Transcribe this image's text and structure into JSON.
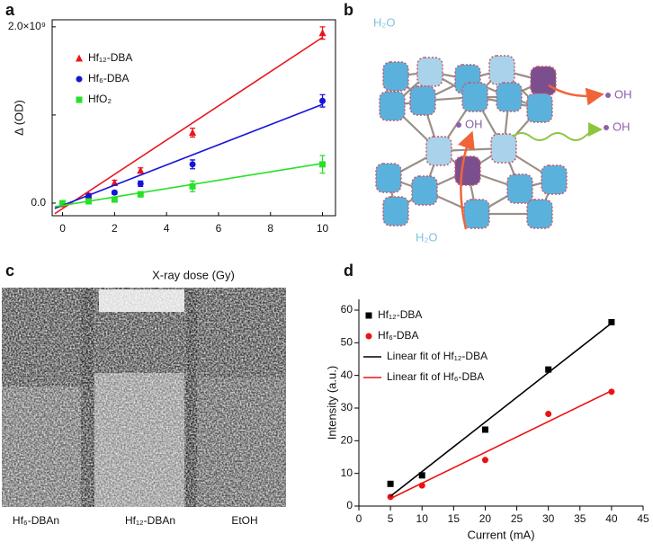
{
  "panel_labels": [
    "a",
    "b",
    "c",
    "d"
  ],
  "chart_data": [
    {
      "type": "scatter",
      "xlabel": "X-ray dose (Gy)",
      "ylabel": "Δ (OD)",
      "xlim": [
        -0.4,
        10.5
      ],
      "xticks": [
        0,
        2,
        4,
        6,
        8,
        10
      ],
      "ylim": [
        -143000000,
        2080000000
      ],
      "yticks": [
        {
          "value": 0,
          "label": "0.0"
        },
        {
          "value": 2000000000,
          "label": "2.0×10⁹"
        }
      ],
      "minor_yticks": [
        1000000000
      ],
      "frame": "box",
      "series": [
        {
          "name": "Hf₁₂-DBA",
          "color": "#e8161e",
          "marker": "triangle",
          "x": [
            0,
            1,
            2,
            3,
            5,
            10
          ],
          "values": [
            -10000000,
            90000000,
            230000000,
            370000000,
            800000000,
            1930000000
          ],
          "errors": [
            20000000,
            20000000,
            30000000,
            30000000,
            50000000,
            70000000
          ]
        },
        {
          "name": "Hf₆-DBA",
          "color": "#1515d8",
          "marker": "circle",
          "x": [
            0,
            1,
            2,
            3,
            5,
            10
          ],
          "values": [
            0,
            80000000,
            120000000,
            220000000,
            440000000,
            1160000000
          ],
          "errors": [
            20000000,
            20000000,
            20000000,
            30000000,
            50000000,
            70000000
          ]
        },
        {
          "name": "HfO₂",
          "color": "#27e127",
          "marker": "square",
          "x": [
            0,
            1,
            2,
            3,
            5,
            10
          ],
          "values": [
            0,
            20000000,
            40000000,
            100000000,
            190000000,
            440000000
          ],
          "errors": [
            20000000,
            20000000,
            20000000,
            30000000,
            60000000,
            100000000
          ]
        },
        {
          "color": "#e8161e",
          "line": true,
          "x": [
            -0.3,
            10
          ],
          "values": [
            -120000000,
            1880000000
          ]
        },
        {
          "color": "#1515d8",
          "line": true,
          "x": [
            -0.3,
            10
          ],
          "values": [
            -60000000,
            1120000000
          ]
        },
        {
          "color": "#27e127",
          "line": true,
          "x": [
            -0.3,
            10
          ],
          "values": [
            -40000000,
            450000000
          ]
        }
      ]
    },
    {
      "type": "scatter",
      "xlabel": "Current (mA)",
      "ylabel": "Intensity (a.u.)",
      "xlim": [
        0,
        45
      ],
      "xticks": [
        0,
        5,
        10,
        15,
        20,
        25,
        30,
        35,
        40,
        45
      ],
      "ylim": [
        0,
        63.3
      ],
      "yticks": [
        0,
        10,
        20,
        30,
        40,
        50,
        60
      ],
      "frame": "axes",
      "series": [
        {
          "name": "Hf₁₂-DBA",
          "color": "#000000",
          "marker": "square",
          "x": [
            5,
            10,
            20,
            30,
            40
          ],
          "values": [
            6.8,
            9.4,
            23.4,
            41.8,
            56.3
          ]
        },
        {
          "name": "Hf₆-DBA",
          "color": "#ee1111",
          "marker": "circle",
          "x": [
            5,
            10,
            20,
            30,
            40
          ],
          "values": [
            2.8,
            6.3,
            14.1,
            28.2,
            35
          ]
        },
        {
          "name": "Linear fit of Hf₁₂-DBA",
          "color": "#000000",
          "line": true,
          "x": [
            5,
            40
          ],
          "values": [
            3,
            56
          ]
        },
        {
          "name": "Linear fit of Hf₆-DBA",
          "color": "#ee1111",
          "line": true,
          "x": [
            5,
            40
          ],
          "values": [
            2.3,
            35.3
          ]
        }
      ]
    }
  ],
  "diagram": {
    "labels": [
      "H₂O",
      "OH",
      "OH",
      "OH",
      "H₂O"
    ]
  },
  "image": {
    "labels": [
      "Hf₆-DBAn",
      "Hf₁₂-DBAn",
      "EtOH"
    ]
  }
}
